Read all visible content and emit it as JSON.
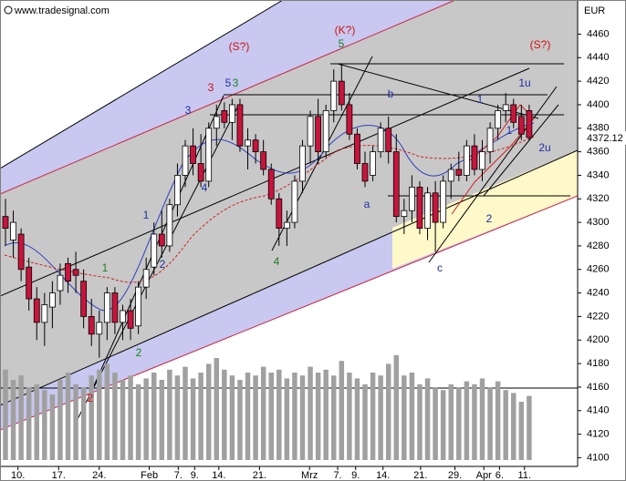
{
  "chart_data": {
    "type": "candlestick",
    "source": "www.tradesignal.com",
    "currency": "EUR",
    "ylim": [
      4098,
      4489
    ],
    "yticks": [
      4100,
      4120,
      4140,
      4160,
      4180,
      4200,
      4220,
      4240,
      4260,
      4280,
      4300,
      4320,
      4340,
      4360,
      4380,
      4400,
      4420,
      4440,
      4460
    ],
    "xlim": [
      -0.7,
      73.2
    ],
    "xticks": [
      {
        "value": 1.6,
        "label": "10."
      },
      {
        "value": 6.8,
        "label": "17."
      },
      {
        "value": 12.0,
        "label": "24."
      },
      {
        "value": 18.4,
        "label": "Feb"
      },
      {
        "value": 22.1,
        "label": "7."
      },
      {
        "value": 24.2,
        "label": "9."
      },
      {
        "value": 27.3,
        "label": "14."
      },
      {
        "value": 32.5,
        "label": "21."
      },
      {
        "value": 38.9,
        "label": "Mrz"
      },
      {
        "value": 42.5,
        "label": "7."
      },
      {
        "value": 44.8,
        "label": "9."
      },
      {
        "value": 48.3,
        "label": "14."
      },
      {
        "value": 53.1,
        "label": "21."
      },
      {
        "value": 57.5,
        "label": "29."
      },
      {
        "value": 61.2,
        "label": "Apr"
      },
      {
        "value": 63.2,
        "label": "6."
      },
      {
        "value": 66.4,
        "label": "11."
      }
    ],
    "up_color": "#ffffff",
    "down_color": "#c8143c",
    "volume_color": "#a0a0a0",
    "volume_lim": [
      0,
      100
    ],
    "ohlc": [
      [
        4305,
        4320,
        4280,
        4295
      ],
      [
        4285,
        4310,
        4270,
        4300
      ],
      [
        4290,
        4295,
        4250,
        4260
      ],
      [
        4262,
        4270,
        4225,
        4235
      ],
      [
        4235,
        4245,
        4200,
        4215
      ],
      [
        4215,
        4240,
        4195,
        4230
      ],
      [
        4228,
        4250,
        4210,
        4240
      ],
      [
        4242,
        4265,
        4230,
        4255
      ],
      [
        4265,
        4270,
        4240,
        4250
      ],
      [
        4260,
        4275,
        4240,
        4255
      ],
      [
        4250,
        4260,
        4210,
        4220
      ],
      [
        4220,
        4235,
        4195,
        4205
      ],
      [
        4205,
        4225,
        4185,
        4215
      ],
      [
        4215,
        4245,
        4200,
        4240
      ],
      [
        4240,
        4245,
        4205,
        4215
      ],
      [
        4215,
        4230,
        4200,
        4225
      ],
      [
        4225,
        4235,
        4200,
        4210
      ],
      [
        4212,
        4250,
        4205,
        4245
      ],
      [
        4245,
        4270,
        4235,
        4260
      ],
      [
        4262,
        4300,
        4255,
        4290
      ],
      [
        4290,
        4310,
        4270,
        4280
      ],
      [
        4280,
        4320,
        4275,
        4315
      ],
      [
        4315,
        4350,
        4305,
        4340
      ],
      [
        4340,
        4370,
        4330,
        4365
      ],
      [
        4365,
        4380,
        4340,
        4350
      ],
      [
        4350,
        4375,
        4330,
        4335
      ],
      [
        4335,
        4385,
        4330,
        4380
      ],
      [
        4380,
        4400,
        4365,
        4390
      ],
      [
        4395,
        4402,
        4380,
        4385
      ],
      [
        4385,
        4405,
        4370,
        4400
      ],
      [
        4400,
        4405,
        4360,
        4365
      ],
      [
        4365,
        4380,
        4345,
        4370
      ],
      [
        4370,
        4375,
        4350,
        4360
      ],
      [
        4360,
        4370,
        4340,
        4345
      ],
      [
        4345,
        4350,
        4315,
        4320
      ],
      [
        4320,
        4325,
        4280,
        4295
      ],
      [
        4295,
        4310,
        4280,
        4300
      ],
      [
        4300,
        4340,
        4295,
        4335
      ],
      [
        4335,
        4370,
        4325,
        4365
      ],
      [
        4365,
        4395,
        4350,
        4390
      ],
      [
        4390,
        4405,
        4350,
        4360
      ],
      [
        4360,
        4400,
        4355,
        4395
      ],
      [
        4395,
        4430,
        4385,
        4420
      ],
      [
        4420,
        4435,
        4395,
        4400
      ],
      [
        4400,
        4410,
        4370,
        4375
      ],
      [
        4375,
        4380,
        4345,
        4350
      ],
      [
        4350,
        4360,
        4330,
        4335
      ],
      [
        4340,
        4365,
        4335,
        4360
      ],
      [
        4360,
        4385,
        4355,
        4380
      ],
      [
        4380,
        4390,
        4350,
        4360
      ],
      [
        4360,
        4375,
        4300,
        4305
      ],
      [
        4305,
        4320,
        4290,
        4310
      ],
      [
        4310,
        4340,
        4300,
        4330
      ],
      [
        4330,
        4335,
        4290,
        4295
      ],
      [
        4295,
        4330,
        4285,
        4325
      ],
      [
        4325,
        4335,
        4275,
        4300
      ],
      [
        4300,
        4340,
        4295,
        4335
      ],
      [
        4335,
        4350,
        4320,
        4345
      ],
      [
        4345,
        4360,
        4335,
        4340
      ],
      [
        4340,
        4370,
        4335,
        4365
      ],
      [
        4365,
        4375,
        4340,
        4345
      ],
      [
        4345,
        4370,
        4335,
        4360
      ],
      [
        4360,
        4385,
        4350,
        4380
      ],
      [
        4380,
        4400,
        4370,
        4395
      ],
      [
        4395,
        4410,
        4385,
        4400
      ],
      [
        4400,
        4405,
        4380,
        4385
      ],
      [
        4390,
        4400,
        4370,
        4375
      ],
      [
        4395,
        4400,
        4370,
        4372.12
      ]
    ],
    "volume": [
      62,
      55,
      58,
      50,
      52,
      48,
      45,
      55,
      60,
      52,
      50,
      58,
      62,
      66,
      60,
      55,
      58,
      52,
      56,
      60,
      55,
      62,
      58,
      64,
      56,
      60,
      66,
      70,
      62,
      58,
      55,
      60,
      58,
      64,
      60,
      62,
      56,
      60,
      58,
      64,
      60,
      62,
      58,
      68,
      60,
      56,
      52,
      60,
      58,
      66,
      72,
      58,
      60,
      52,
      56,
      50,
      48,
      52,
      50,
      54,
      52,
      56,
      50,
      54,
      48,
      46,
      40,
      44
    ],
    "annotations": [
      "(S?)",
      "(K?)",
      "(S?)",
      "5",
      "5",
      "3",
      "3",
      "3",
      "1u",
      "2u",
      "b",
      "a",
      "c",
      "1",
      "1",
      "2",
      "1",
      "2",
      "4",
      "4",
      "2",
      "2",
      "1"
    ]
  }
}
